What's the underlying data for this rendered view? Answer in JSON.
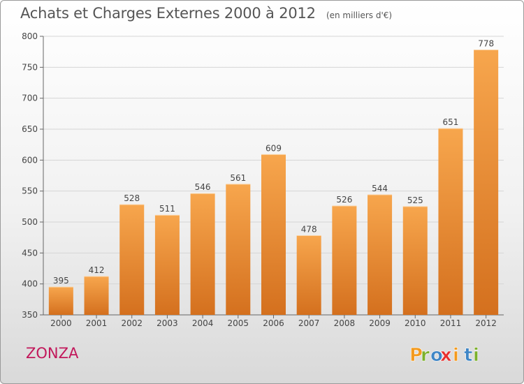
{
  "header": {
    "title": "Achats et Charges Externes 2000 à 2012",
    "subtitle": "(en milliers d'€)"
  },
  "commune": "ZONZA",
  "logo": {
    "text": "Proxiti",
    "letter_colors": [
      "#f39a1e",
      "#7bb02b",
      "#3f86c6",
      "#e8302f",
      "#f39a1e",
      "#3f86c6",
      "#7bb02b"
    ]
  },
  "colors": {
    "bar_top": "#f7a64d",
    "bar_bottom": "#d4701e",
    "grid": "#d5d5d5",
    "axis": "#666666"
  },
  "chart_data": {
    "type": "bar",
    "categories": [
      "2000",
      "2001",
      "2002",
      "2003",
      "2004",
      "2005",
      "2006",
      "2007",
      "2008",
      "2009",
      "2010",
      "2011",
      "2012"
    ],
    "values": [
      395,
      412,
      528,
      511,
      546,
      561,
      609,
      478,
      526,
      544,
      525,
      651,
      778
    ],
    "ylim": [
      350,
      800
    ],
    "yticks": [
      350,
      400,
      450,
      500,
      550,
      600,
      650,
      700,
      750,
      800
    ],
    "grid": true
  }
}
